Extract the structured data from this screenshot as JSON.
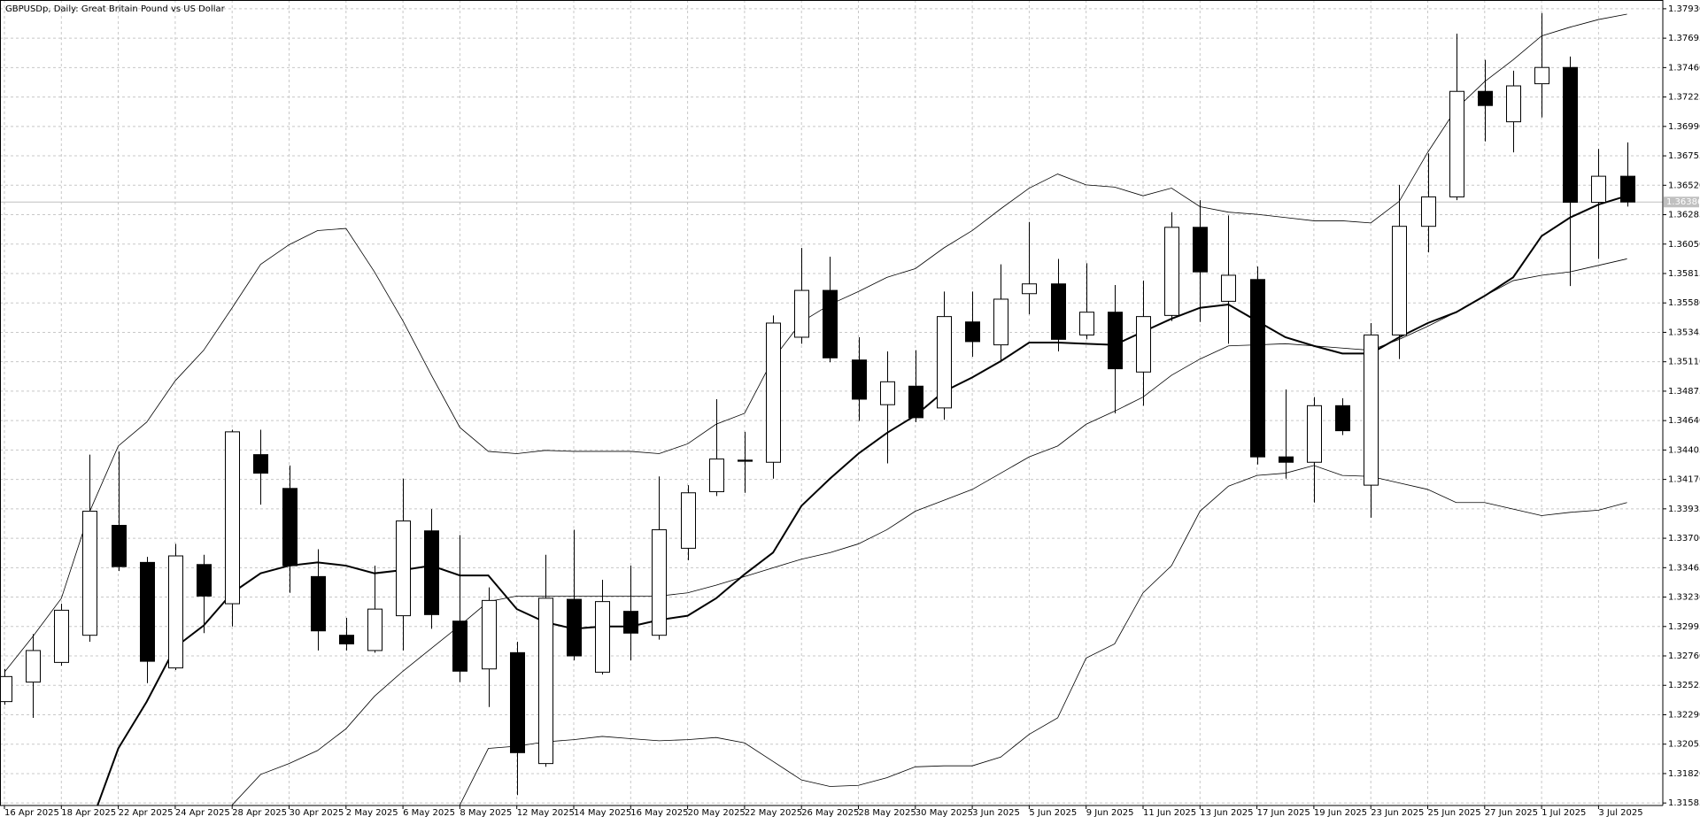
{
  "chart_data": {
    "type": "candlestick",
    "title": "GBPUSDp, Daily:  Great Britain Pound vs US Dollar",
    "categories": [
      "16 Apr 2025",
      null,
      "18 Apr 2025",
      null,
      "22 Apr 2025",
      null,
      "24 Apr 2025",
      null,
      "28 Apr 2025",
      null,
      "30 Apr 2025",
      null,
      "2 May 2025",
      null,
      "6 May 2025",
      null,
      "8 May 2025",
      null,
      "12 May 2025",
      null,
      "14 May 2025",
      null,
      "16 May 2025",
      null,
      "20 May 2025",
      null,
      "22 May 2025",
      null,
      "26 May 2025",
      null,
      "28 May 2025",
      null,
      "30 May 2025",
      null,
      "3 Jun 2025",
      null,
      "5 Jun 2025",
      null,
      "9 Jun 2025",
      null,
      "11 Jun 2025",
      null,
      "13 Jun 2025",
      null,
      "17 Jun 2025",
      null,
      "19 Jun 2025",
      null,
      "23 Jun 2025",
      null,
      "25 Jun 2025",
      null,
      "27 Jun 2025",
      null,
      "1 Jul 2025",
      null,
      "3 Jul 2025",
      null
    ],
    "open": [
      1.32395,
      1.32551,
      1.32708,
      1.32925,
      1.33803,
      1.33507,
      1.32664,
      1.3349,
      1.33177,
      1.34368,
      1.34098,
      1.33394,
      1.32925,
      1.32803,
      1.33081,
      1.33759,
      1.33038,
      1.32656,
      1.32786,
      1.319,
      1.33212,
      1.3263,
      1.33116,
      1.32925,
      1.3362,
      1.34072,
      1.34324,
      1.34307,
      1.35306,
      1.3568,
      1.35124,
      1.34767,
      1.34915,
      1.34741,
      1.35428,
      1.35245,
      1.35654,
      1.35732,
      1.35324,
      1.35506,
      1.35028,
      1.3548,
      1.36184,
      1.35593,
      1.35767,
      1.3435,
      1.34307,
      1.34759,
      1.34124,
      1.35324,
      1.36192,
      1.36427,
      1.3727,
      1.37027,
      1.37331,
      1.37461,
      1.36384,
      1.36592
    ],
    "high": [
      1.32656,
      1.32934,
      1.33177,
      1.34368,
      1.34394,
      1.33551,
      1.33655,
      1.33568,
      1.34567,
      1.34567,
      1.34281,
      1.33612,
      1.33064,
      1.33481,
      1.34176,
      1.33933,
      1.33725,
      1.33307,
      1.32873,
      1.33568,
      1.33768,
      1.33368,
      1.33481,
      1.34194,
      1.34124,
      1.34811,
      1.3455,
      1.3548,
      1.36019,
      1.35949,
      1.35306,
      1.35193,
      1.35202,
      1.35671,
      1.35671,
      1.35888,
      1.36227,
      1.35932,
      1.35897,
      1.35723,
      1.35758,
      1.36305,
      1.36401,
      1.36279,
      1.35871,
      1.34889,
      1.34828,
      1.34819,
      1.35419,
      1.36523,
      1.36775,
      1.37731,
      1.37522,
      1.37435,
      1.37896,
      1.37548,
      1.3681,
      1.36862
    ],
    "low": [
      1.32369,
      1.32265,
      1.32682,
      1.32873,
      1.33438,
      1.32543,
      1.32647,
      1.32942,
      1.32995,
      1.33968,
      1.33264,
      1.32803,
      1.32803,
      1.32786,
      1.32803,
      1.32977,
      1.32551,
      1.32352,
      1.31648,
      1.31874,
      1.32725,
      1.32612,
      1.32725,
      1.3289,
      1.33525,
      1.34037,
      1.34063,
      1.34176,
      1.35254,
      1.35106,
      1.34637,
      1.34298,
      1.34628,
      1.34646,
      1.3515,
      1.35106,
      1.35489,
      1.35193,
      1.35289,
      1.34698,
      1.34759,
      1.35436,
      1.35428,
      1.35254,
      1.34289,
      1.34176,
      1.33985,
      1.34524,
      1.33864,
      1.35132,
      1.35984,
      1.36401,
      1.3687,
      1.36783,
      1.37062,
      1.35715,
      1.35932,
      1.3635
    ],
    "close": [
      1.32595,
      1.32803,
      1.33125,
      1.33916,
      1.33473,
      1.32717,
      1.33559,
      1.33238,
      1.3455,
      1.3422,
      1.33481,
      1.3296,
      1.32856,
      1.33134,
      1.33838,
      1.3309,
      1.32638,
      1.33203,
      1.31987,
      1.33221,
      1.3276,
      1.33194,
      1.32942,
      1.33768,
      1.34063,
      1.34333,
      1.34315,
      1.35419,
      1.3568,
      1.35141,
      1.34811,
      1.3495,
      1.34663,
      1.35471,
      1.35271,
      1.3561,
      1.35732,
      1.35289,
      1.35506,
      1.35054,
      1.35471,
      1.36184,
      1.35828,
      1.35801,
      1.3435,
      1.34307,
      1.34759,
      1.34559,
      1.35324,
      1.36192,
      1.36427,
      1.3727,
      1.37157,
      1.37314,
      1.37461,
      1.36384,
      1.36592,
      1.36386
    ],
    "up_color": "#ffffff",
    "down_color": "#000000",
    "outline_color": "#000000",
    "series": [
      {
        "color": "#000000",
        "line_width": 0.8,
        "values": [
          1.3263,
          1.32916,
          1.3322,
          1.33916,
          1.34437,
          1.34628,
          1.34958,
          1.35202,
          1.35541,
          1.35888,
          1.36045,
          1.36158,
          1.36175,
          1.35828,
          1.35436,
          1.35002,
          1.34585,
          1.34394,
          1.34376,
          1.34402,
          1.34394,
          1.34394,
          1.34394,
          1.34376,
          1.34454,
          1.34611,
          1.34698,
          1.35132,
          1.35428,
          1.35567,
          1.35671,
          1.35784,
          1.35854,
          1.36019,
          1.36158,
          1.36332,
          1.36497,
          1.3661,
          1.36523,
          1.36505,
          1.36436,
          1.36497,
          1.36349,
          1.36305,
          1.36288,
          1.36262,
          1.36236,
          1.36236,
          1.36219,
          1.36392,
          1.36783,
          1.37131,
          1.37348,
          1.37522,
          1.37713,
          1.37783,
          1.37844,
          1.37887
        ]
      },
      {
        "color": "#000000",
        "line_width": 0.8,
        "values": [
          null,
          null,
          null,
          null,
          null,
          null,
          null,
          null,
          1.31569,
          1.31813,
          1.319,
          1.32004,
          1.32178,
          1.32438,
          1.32638,
          1.32821,
          1.33003,
          1.33194,
          1.33238,
          1.33238,
          1.33238,
          1.33238,
          1.33238,
          1.33238,
          1.33264,
          1.33325,
          1.33394,
          1.33464,
          1.33533,
          1.33585,
          1.33655,
          1.33768,
          1.33916,
          1.34003,
          1.3409,
          1.3422,
          1.3435,
          1.34437,
          1.34611,
          1.34715,
          1.34828,
          1.35002,
          1.35132,
          1.35237,
          1.35245,
          1.35254,
          1.35237,
          1.35219,
          1.35202,
          1.35289,
          1.35393,
          1.35506,
          1.35636,
          1.35758,
          1.35801,
          1.35828,
          1.3588,
          1.35932
        ]
      },
      {
        "color": "#000000",
        "line_width": 0.8,
        "values": [
          null,
          null,
          null,
          null,
          null,
          null,
          null,
          null,
          null,
          null,
          null,
          null,
          null,
          null,
          null,
          null,
          1.31569,
          1.32021,
          1.32039,
          1.32073,
          1.32091,
          1.32117,
          1.32099,
          1.32082,
          1.32091,
          1.32108,
          1.32065,
          1.31917,
          1.31769,
          1.31717,
          1.31726,
          1.31787,
          1.31874,
          1.31882,
          1.31882,
          1.31952,
          1.32134,
          1.32265,
          1.32743,
          1.32856,
          1.33264,
          1.33481,
          1.33916,
          1.34116,
          1.34202,
          1.3422,
          1.34281,
          1.34202,
          1.34194,
          1.34142,
          1.3409,
          1.33985,
          1.33985,
          1.33933,
          1.33881,
          1.33907,
          1.33924,
          1.33985
        ]
      },
      {
        "color": "#000000",
        "line_width": 2,
        "values": [
          null,
          null,
          null,
          1.31396,
          1.32021,
          1.32395,
          1.32829,
          1.33003,
          1.33264,
          1.3342,
          1.33481,
          1.33507,
          1.33481,
          1.3342,
          1.33446,
          1.33481,
          1.33403,
          1.33403,
          1.33134,
          1.33029,
          1.32977,
          1.32995,
          1.32995,
          1.33047,
          1.33081,
          1.3322,
          1.33412,
          1.33585,
          1.33959,
          1.34176,
          1.34376,
          1.34541,
          1.3468,
          1.34872,
          1.34985,
          1.35115,
          1.35263,
          1.35263,
          1.35254,
          1.35245,
          1.3535,
          1.35454,
          1.35541,
          1.35567,
          1.35436,
          1.35306,
          1.35237,
          1.35176,
          1.35176,
          1.35306,
          1.35419,
          1.35506,
          1.35636,
          1.35784,
          1.36114,
          1.36262,
          1.36366,
          1.36436
        ]
      }
    ],
    "current_price": 1.36386,
    "ylim": [
      1.31565,
      1.38
    ],
    "yticks": [
      {
        "value": 1.3793,
        "label": "1.37930"
      },
      1.37695,
      {
        "value": 1.3746,
        "label": "1.37460"
      },
      1.37225,
      {
        "value": 1.3699,
        "label": "1.36990"
      },
      1.36755,
      {
        "value": 1.3652,
        "label": "1.36520"
      },
      1.36285,
      {
        "value": 1.3605,
        "label": "1.36050"
      },
      1.35815,
      {
        "value": 1.3558,
        "label": "1.35580"
      },
      1.35345,
      {
        "value": 1.3511,
        "label": "1.35110"
      },
      1.34875,
      {
        "value": 1.3464,
        "label": "1.34640"
      },
      1.34405,
      {
        "value": 1.3417,
        "label": "1.34170"
      },
      1.33935,
      {
        "value": 1.337,
        "label": "1.33700"
      },
      1.33465,
      {
        "value": 1.3323,
        "label": "1.33230"
      },
      1.32995,
      {
        "value": 1.3276,
        "label": "1.32760"
      },
      1.32525,
      {
        "value": 1.3229,
        "label": "1.32290"
      },
      1.32055,
      {
        "value": 1.3182,
        "label": "1.31820"
      },
      1.31585
    ],
    "grid": true
  }
}
